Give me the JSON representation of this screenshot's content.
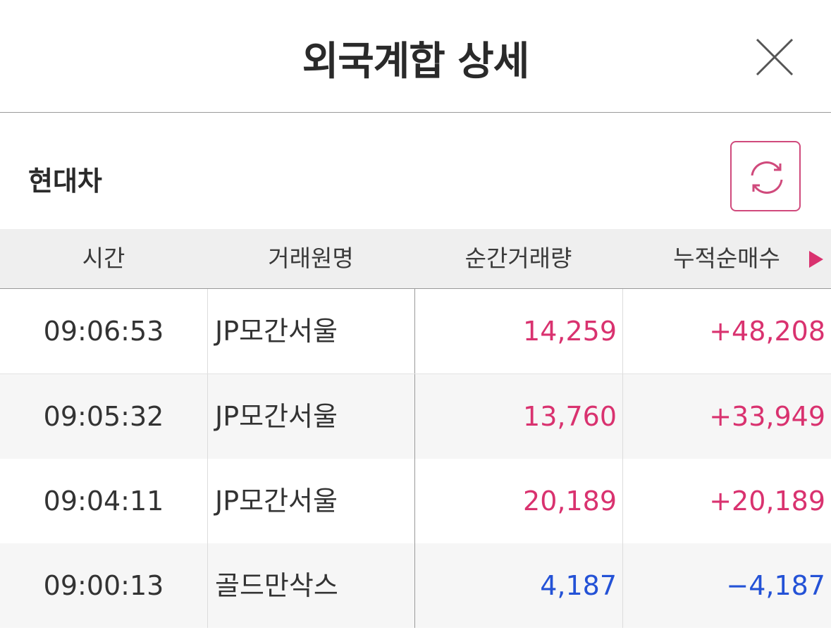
{
  "header": {
    "title": "외국계합 상세"
  },
  "stock": {
    "name": "현대차"
  },
  "table": {
    "columns": [
      "시간",
      "거래원명",
      "순간거래량",
      "누적순매수"
    ],
    "rows": [
      {
        "time": "09:06:53",
        "name": "JP모간서울",
        "volume": "14,259",
        "cumulative": "+48,208",
        "color": "#d9326f"
      },
      {
        "time": "09:05:32",
        "name": "JP모간서울",
        "volume": "13,760",
        "cumulative": "+33,949",
        "color": "#d9326f"
      },
      {
        "time": "09:04:11",
        "name": "JP모간서울",
        "volume": "20,189",
        "cumulative": "+20,189",
        "color": "#d9326f"
      },
      {
        "time": "09:00:13",
        "name": "골드만삭스",
        "volume": "4,187",
        "cumulative": "−4,187",
        "color": "#2452d6"
      }
    ]
  },
  "icons": {
    "close": "close-icon",
    "refresh": "refresh-icon",
    "next": "triangle-right-icon"
  },
  "colors": {
    "up": "#d9326f",
    "down": "#2452d6",
    "accent": "#d04a7c"
  }
}
